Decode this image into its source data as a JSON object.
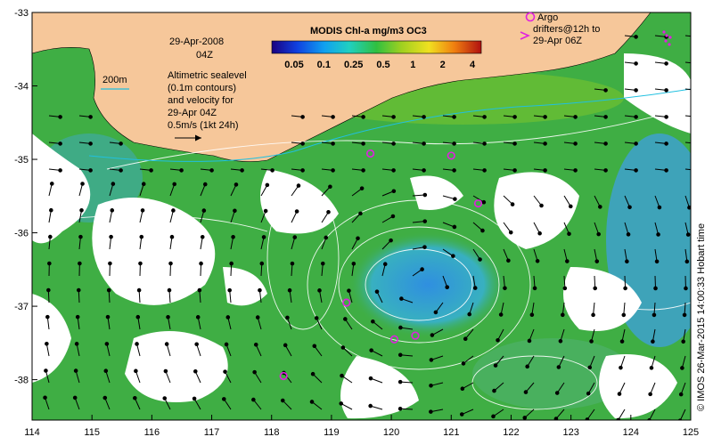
{
  "map": {
    "date_label": "29-Apr-2008",
    "time_label": "04Z",
    "contour_label": "200m",
    "legend_lines": [
      "Altimetric sealevel",
      "(0.1m contours)",
      "and velocity for",
      "29-Apr 04Z",
      "0.5m/s (1kt 24h)"
    ],
    "colorbar_title": "MODIS Chl-a mg/m3 OC3",
    "colorbar_ticks": [
      "0.05",
      "0.1",
      "0.25",
      "0.5",
      "1",
      "2",
      "4"
    ],
    "argo_lines": [
      "Argo",
      "drifters@12h to",
      "29-Apr 06Z"
    ],
    "credit": "© IMOS 26-Mar-2015 14:00:33 Hobart time",
    "x_ticks": [
      "114",
      "115",
      "116",
      "117",
      "118",
      "119",
      "120",
      "121",
      "122",
      "123",
      "124",
      "125"
    ],
    "y_ticks": [
      "-33",
      "-34",
      "-35",
      "-36",
      "-37",
      "-38"
    ],
    "lon_range": [
      114,
      125
    ],
    "lat_range": [
      -38.55,
      -33
    ],
    "drifters": [
      {
        "lon": 119.65,
        "lat": -34.92
      },
      {
        "lon": 121.0,
        "lat": -34.95
      },
      {
        "lon": 121.45,
        "lat": -35.6
      },
      {
        "lon": 119.25,
        "lat": -36.95
      },
      {
        "lon": 120.05,
        "lat": -37.45
      },
      {
        "lon": 120.4,
        "lat": -37.4
      },
      {
        "lon": 118.2,
        "lat": -37.95
      }
    ],
    "colors": {
      "land": "#f6c79a",
      "ocean_green": "#3fae44",
      "ocean_blue": "#3f9fe0",
      "drifter": "#e020e0",
      "contour": "#ffffff",
      "arrow": "#000000"
    }
  }
}
